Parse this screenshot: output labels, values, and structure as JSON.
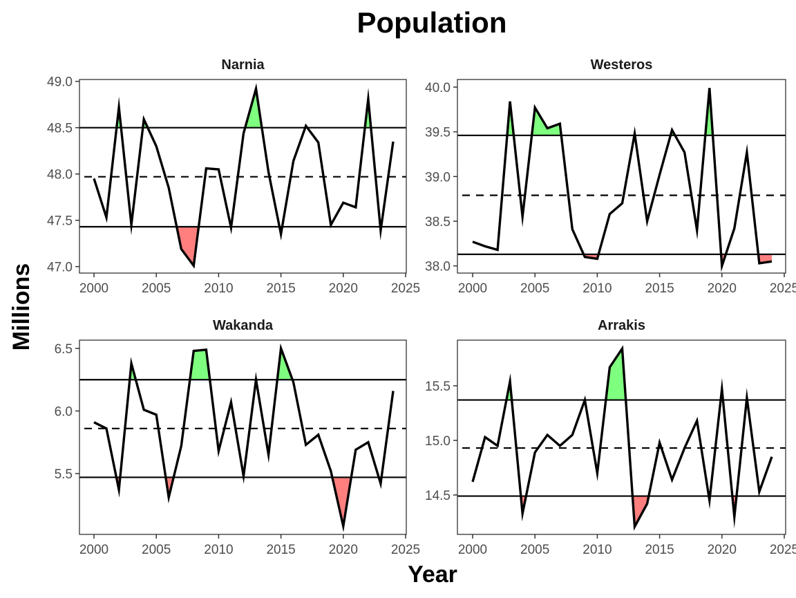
{
  "chart_data": {
    "type": "line",
    "title": "Population",
    "xlabel": "Year",
    "ylabel": "Millions",
    "grid": false,
    "colors": {
      "line": "#000000",
      "above_fill": "#7FFF7F",
      "below_fill": "#FF7F7F",
      "frame": "#333333"
    },
    "x_ticks": [
      2000,
      2005,
      2010,
      2015,
      2020,
      2025
    ],
    "xlim": [
      2000,
      2025
    ],
    "panels": [
      {
        "name": "Narnia",
        "ylim": [
          46.93,
          49.02
        ],
        "y_ticks": [
          "47.0",
          "47.5",
          "48.0",
          "48.5",
          "49.0"
        ],
        "upper": 48.5,
        "mean": 47.97,
        "lower": 47.43,
        "x": [
          2000,
          2001,
          2002,
          2003,
          2004,
          2005,
          2006,
          2007,
          2008,
          2009,
          2010,
          2011,
          2012,
          2013,
          2014,
          2015,
          2016,
          2017,
          2018,
          2019,
          2020,
          2021,
          2022,
          2023,
          2024
        ],
        "values": [
          47.95,
          47.53,
          48.72,
          47.45,
          48.59,
          48.3,
          47.85,
          47.19,
          47.01,
          48.06,
          48.05,
          47.42,
          48.44,
          48.92,
          48.02,
          47.35,
          48.14,
          48.52,
          48.34,
          47.45,
          47.69,
          47.64,
          48.81,
          47.39,
          48.35
        ]
      },
      {
        "name": "Westeros",
        "ylim": [
          37.92,
          40.085
        ],
        "y_ticks": [
          "38.0",
          "38.5",
          "39.0",
          "39.5",
          "40.0"
        ],
        "upper": 39.46,
        "mean": 38.79,
        "lower": 38.13,
        "x": [
          2000,
          2001,
          2002,
          2003,
          2004,
          2005,
          2006,
          2007,
          2008,
          2009,
          2010,
          2011,
          2012,
          2013,
          2014,
          2015,
          2016,
          2017,
          2018,
          2019,
          2020,
          2021,
          2022,
          2023,
          2024
        ],
        "values": [
          38.27,
          38.22,
          38.18,
          39.84,
          38.55,
          39.77,
          39.54,
          39.59,
          38.41,
          38.1,
          38.08,
          38.58,
          38.7,
          39.48,
          38.5,
          39.02,
          39.52,
          39.27,
          38.4,
          39.99,
          38.0,
          38.42,
          39.27,
          38.03,
          38.05
        ]
      },
      {
        "name": "Wakanda",
        "ylim": [
          5.014,
          6.566
        ],
        "y_ticks": [
          "5.5",
          "6.0",
          "6.5"
        ],
        "upper": 6.25,
        "mean": 5.86,
        "lower": 5.47,
        "x": [
          2000,
          2001,
          2002,
          2003,
          2004,
          2005,
          2006,
          2007,
          2008,
          2009,
          2010,
          2011,
          2012,
          2013,
          2014,
          2015,
          2016,
          2017,
          2018,
          2019,
          2020,
          2021,
          2022,
          2023,
          2024
        ],
        "values": [
          5.91,
          5.86,
          5.37,
          6.38,
          6.01,
          5.97,
          5.31,
          5.72,
          6.48,
          6.49,
          5.68,
          6.07,
          5.48,
          6.25,
          5.65,
          6.5,
          6.23,
          5.73,
          5.81,
          5.52,
          5.08,
          5.69,
          5.75,
          5.42,
          6.16
        ]
      },
      {
        "name": "Arrakis",
        "ylim": [
          14.139,
          15.918
        ],
        "y_ticks": [
          "14.5",
          "15.0",
          "15.5"
        ],
        "upper": 15.37,
        "mean": 14.93,
        "lower": 14.49,
        "x": [
          2000,
          2001,
          2002,
          2003,
          2004,
          2005,
          2006,
          2007,
          2008,
          2009,
          2010,
          2011,
          2012,
          2013,
          2014,
          2015,
          2016,
          2017,
          2018,
          2019,
          2020,
          2021,
          2022,
          2023,
          2024
        ],
        "values": [
          14.62,
          15.03,
          14.95,
          15.54,
          14.33,
          14.89,
          15.05,
          14.95,
          15.05,
          15.37,
          14.7,
          15.67,
          15.84,
          14.21,
          14.42,
          14.98,
          14.64,
          14.93,
          15.18,
          14.45,
          15.47,
          14.3,
          15.39,
          14.53,
          14.85
        ]
      }
    ]
  }
}
